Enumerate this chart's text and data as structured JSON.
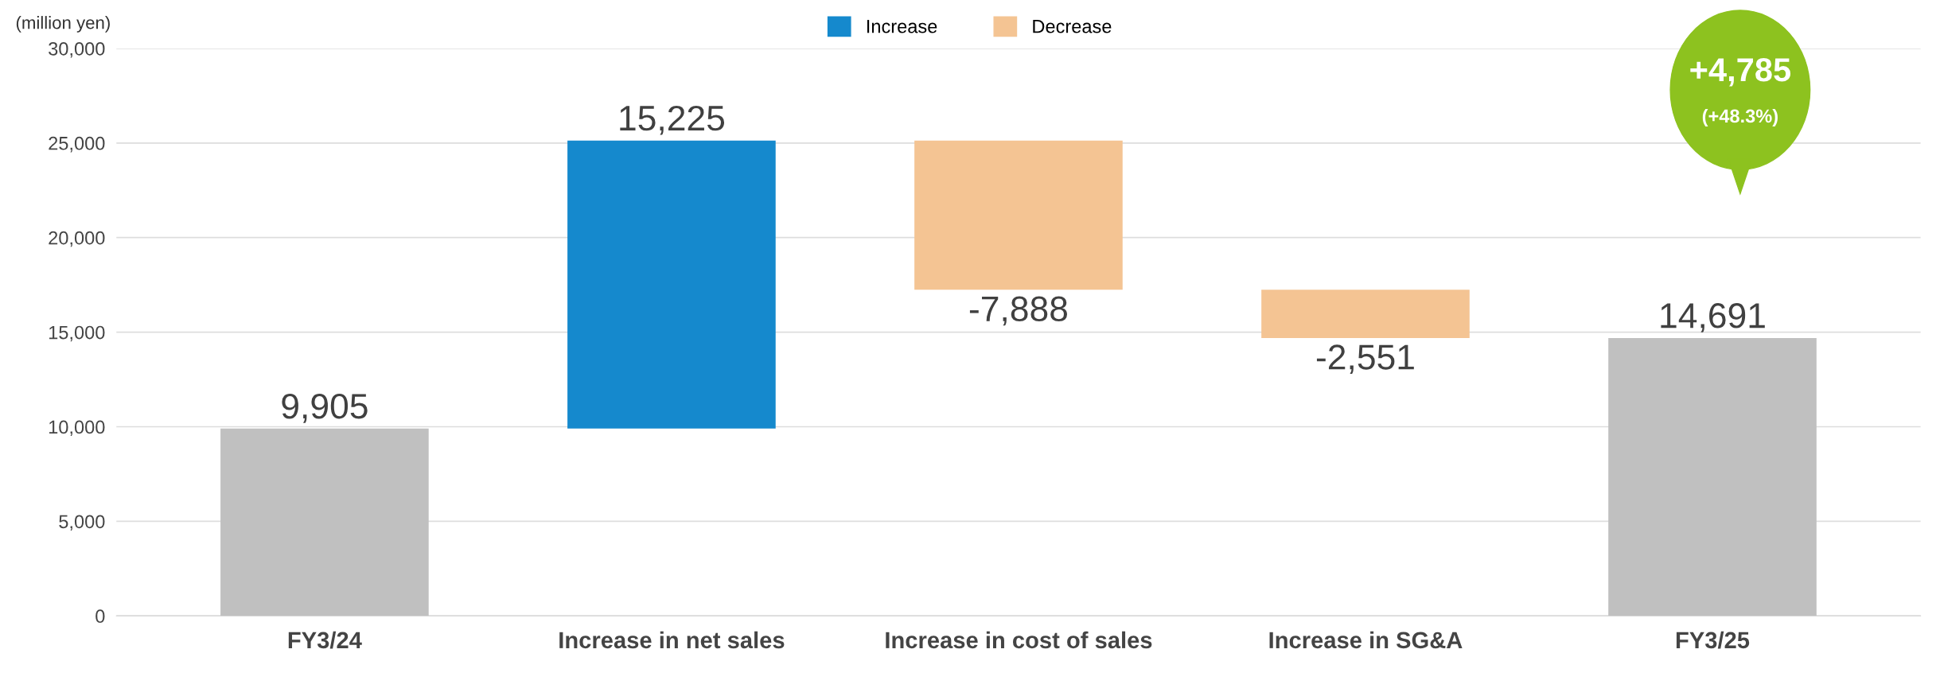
{
  "chart_data": {
    "type": "bar",
    "ylabel": "(million yen)",
    "categories": [
      "FY3/24",
      "Increase in net sales",
      "Increase in cost of sales",
      "Increase in SG&A",
      "FY3/25"
    ],
    "series": [
      {
        "color": "#c0c0c0",
        "values": [
          9905,
          null,
          null,
          null,
          14691
        ],
        "base": [
          0,
          null,
          null,
          null,
          0
        ],
        "value_labels": [
          "9,905",
          null,
          null,
          null,
          "14,691"
        ]
      },
      {
        "name": "Increase",
        "color": "#1589cd",
        "values": [
          null,
          15225,
          null,
          null,
          null
        ],
        "base": [
          null,
          9905,
          null,
          null,
          null
        ],
        "value_labels": [
          null,
          "15,225",
          null,
          null,
          null
        ]
      },
      {
        "name": "Decrease",
        "color": "#f4c493",
        "values": [
          null,
          null,
          -7888,
          -2551,
          null
        ],
        "base": [
          null,
          null,
          25130,
          17242,
          null
        ],
        "value_labels": [
          null,
          null,
          "-7,888",
          "-2,551",
          null
        ]
      }
    ],
    "ylim": [
      0,
      30000
    ],
    "yticks": [
      {
        "value": 0,
        "label": "0"
      },
      {
        "value": 5000,
        "label": "5,000"
      },
      {
        "value": 10000,
        "label": "10,000"
      },
      {
        "value": 15000,
        "label": "15,000"
      },
      {
        "value": 20000,
        "label": "20,000"
      },
      {
        "value": 25000,
        "label": "25,000"
      },
      {
        "value": 30000,
        "label": "30,000"
      }
    ],
    "grid": "y",
    "legend": "top",
    "annotations": [
      "+4,785",
      "(+48.3%)"
    ]
  }
}
